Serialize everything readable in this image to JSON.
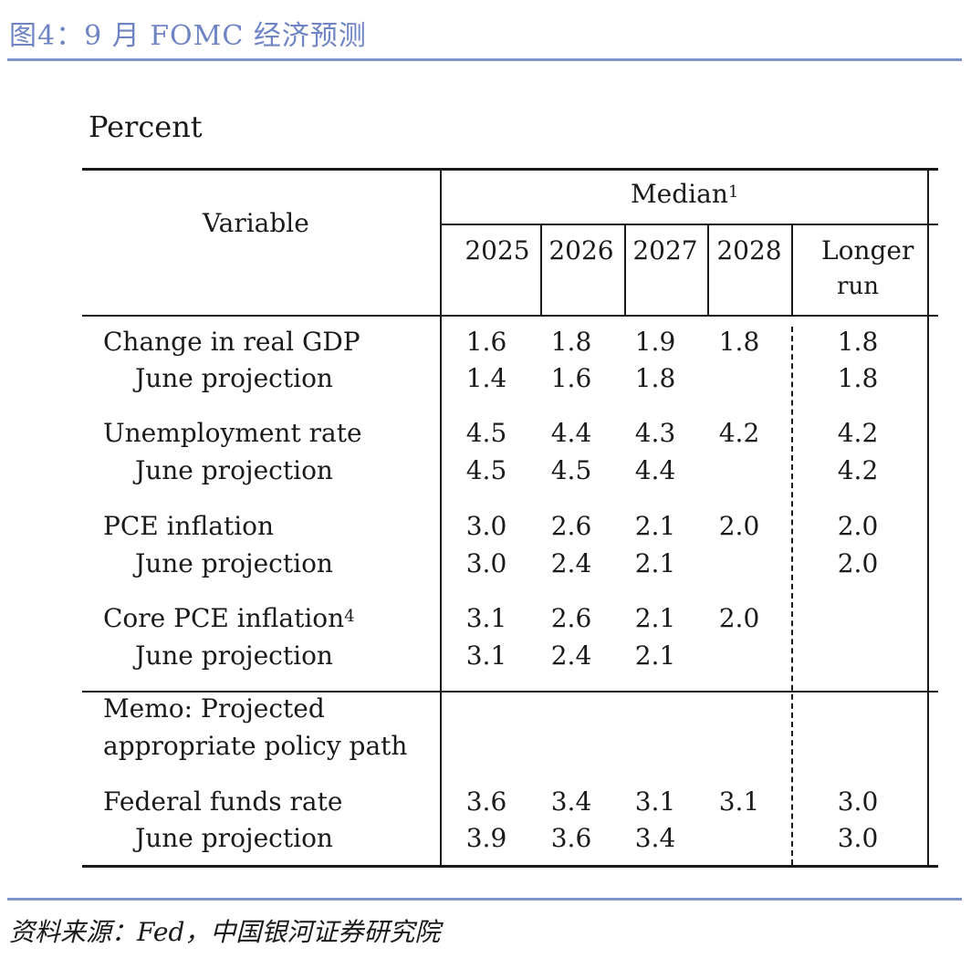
{
  "figure": {
    "title": "图4：9 月 FOMC 经济预测",
    "source": "资料来源：Fed，中国银河证券研究院"
  },
  "table": {
    "unit_label": "Percent",
    "variable_header": "Variable",
    "median_header": "Median",
    "median_footnote": "1",
    "years": [
      "2025",
      "2026",
      "2027",
      "2028"
    ],
    "longer_run_line1": "Longer",
    "longer_run_line2": "run",
    "rows": [
      {
        "label": "Change in real GDP",
        "values": [
          "1.6",
          "1.8",
          "1.9",
          "1.8"
        ],
        "longer_run": "1.8"
      },
      {
        "label": "June projection",
        "values": [
          "1.4",
          "1.6",
          "1.8",
          ""
        ],
        "longer_run": "1.8"
      },
      {
        "label": "Unemployment rate",
        "values": [
          "4.5",
          "4.4",
          "4.3",
          "4.2"
        ],
        "longer_run": "4.2"
      },
      {
        "label": "June projection",
        "values": [
          "4.5",
          "4.5",
          "4.4",
          ""
        ],
        "longer_run": "4.2"
      },
      {
        "label": "PCE inflation",
        "values": [
          "3.0",
          "2.6",
          "2.1",
          "2.0"
        ],
        "longer_run": "2.0"
      },
      {
        "label": "June projection",
        "values": [
          "3.0",
          "2.4",
          "2.1",
          ""
        ],
        "longer_run": "2.0"
      },
      {
        "label": "Core PCE inflation",
        "footnote": "4",
        "values": [
          "3.1",
          "2.6",
          "2.1",
          "2.0"
        ],
        "longer_run": ""
      },
      {
        "label": "June projection",
        "values": [
          "3.1",
          "2.4",
          "2.1",
          ""
        ],
        "longer_run": ""
      }
    ],
    "memo_line1": "Memo: Projected",
    "memo_line2": "appropriate policy path",
    "memo_rows": [
      {
        "label": "Federal funds rate",
        "values": [
          "3.6",
          "3.4",
          "3.1",
          "3.1"
        ],
        "longer_run": "3.0"
      },
      {
        "label": "June projection",
        "values": [
          "3.9",
          "3.6",
          "3.4",
          ""
        ],
        "longer_run": "3.0"
      }
    ]
  }
}
